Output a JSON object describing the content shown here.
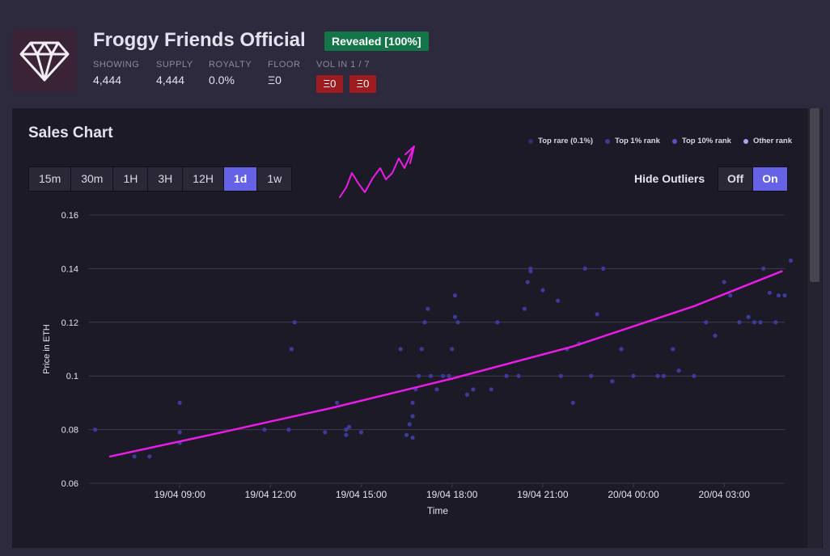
{
  "collection": {
    "name": "Froggy Friends Official",
    "status_badge": "Revealed [100%]",
    "logo_icon": "diamond-icon",
    "stats": [
      {
        "label": "SHOWING",
        "value": "4,444"
      },
      {
        "label": "SUPPLY",
        "value": "4,444"
      },
      {
        "label": "ROYALTY",
        "value": "0.0%"
      },
      {
        "label": "FLOOR",
        "value": "Ξ0"
      }
    ],
    "vol": {
      "label": "VOL IN 1 / 7",
      "day": "Ξ0",
      "week": "Ξ0"
    }
  },
  "panel": {
    "title": "Sales Chart",
    "timeframes": [
      "15m",
      "30m",
      "1H",
      "3H",
      "12H",
      "1d",
      "1w"
    ],
    "active_timeframe": "1d",
    "hide_outliers": {
      "label": "Hide Outliers",
      "off": "Off",
      "on": "On",
      "selected": "On"
    }
  },
  "colors": {
    "accent": "#6662e6",
    "badge": "#137548",
    "vol_chip": "#9e1c1f",
    "trend_line": "#e91ce6",
    "annotation": "#e91ce6"
  },
  "chart_data": {
    "type": "scatter",
    "xlabel": "Time",
    "ylabel": "Price in ETH",
    "x_ticks": [
      "19/04 09:00",
      "19/04 12:00",
      "19/04 15:00",
      "19/04 18:00",
      "19/04 21:00",
      "20/04 00:00",
      "20/04 03:00"
    ],
    "y_ticks": [
      "0.06",
      "0.08",
      "0.1",
      "0.12",
      "0.14",
      "0.16"
    ],
    "ylim": [
      0.06,
      0.16
    ],
    "xlim_hours": [
      6.0,
      29.0
    ],
    "grid": true,
    "legend": [
      {
        "name": "Top rare (0.1%)",
        "color": "#2e2b6e"
      },
      {
        "name": "Top 1% rank",
        "color": "#3e3a9a"
      },
      {
        "name": "Top 10% rank",
        "color": "#5652c6"
      },
      {
        "name": "Other rank",
        "color": "#a9a7f0"
      }
    ],
    "legend_position": "top-right",
    "series": [
      {
        "name": "Other rank",
        "points": [
          [
            6.2,
            0.08
          ],
          [
            7.5,
            0.07
          ],
          [
            8.0,
            0.07
          ],
          [
            9.0,
            0.09
          ],
          [
            9.0,
            0.079
          ],
          [
            9.0,
            0.075
          ],
          [
            11.8,
            0.08
          ],
          [
            12.6,
            0.08
          ],
          [
            12.7,
            0.11
          ],
          [
            12.8,
            0.12
          ],
          [
            13.8,
            0.079
          ],
          [
            14.2,
            0.09
          ],
          [
            14.5,
            0.08
          ],
          [
            14.5,
            0.078
          ],
          [
            14.6,
            0.081
          ],
          [
            15.0,
            0.079
          ],
          [
            16.3,
            0.11
          ],
          [
            16.5,
            0.078
          ],
          [
            16.6,
            0.082
          ],
          [
            16.7,
            0.085
          ],
          [
            16.7,
            0.077
          ],
          [
            16.7,
            0.09
          ],
          [
            16.8,
            0.095
          ],
          [
            16.9,
            0.1
          ],
          [
            17.0,
            0.11
          ],
          [
            17.1,
            0.12
          ],
          [
            17.2,
            0.125
          ],
          [
            17.3,
            0.1
          ],
          [
            17.5,
            0.095
          ],
          [
            17.7,
            0.1
          ],
          [
            17.9,
            0.1
          ],
          [
            18.0,
            0.11
          ],
          [
            18.1,
            0.122
          ],
          [
            18.1,
            0.13
          ],
          [
            18.2,
            0.12
          ],
          [
            18.5,
            0.093
          ],
          [
            18.7,
            0.095
          ],
          [
            19.3,
            0.095
          ],
          [
            19.5,
            0.12
          ],
          [
            19.8,
            0.1
          ],
          [
            20.2,
            0.1
          ],
          [
            20.4,
            0.125
          ],
          [
            20.5,
            0.135
          ],
          [
            20.6,
            0.14
          ],
          [
            20.6,
            0.139
          ],
          [
            21.0,
            0.132
          ],
          [
            21.5,
            0.128
          ],
          [
            21.6,
            0.1
          ],
          [
            21.8,
            0.11
          ],
          [
            22.0,
            0.09
          ],
          [
            22.2,
            0.112
          ],
          [
            22.4,
            0.14
          ],
          [
            22.6,
            0.1
          ],
          [
            22.8,
            0.123
          ],
          [
            23.0,
            0.14
          ],
          [
            23.3,
            0.098
          ],
          [
            23.6,
            0.11
          ],
          [
            24.0,
            0.1
          ],
          [
            24.8,
            0.1
          ],
          [
            25.0,
            0.1
          ],
          [
            25.3,
            0.11
          ],
          [
            25.5,
            0.102
          ],
          [
            26.0,
            0.1
          ],
          [
            26.4,
            0.12
          ],
          [
            26.7,
            0.115
          ],
          [
            27.0,
            0.135
          ],
          [
            27.2,
            0.13
          ],
          [
            27.5,
            0.12
          ],
          [
            27.8,
            0.122
          ],
          [
            28.0,
            0.12
          ],
          [
            28.2,
            0.12
          ],
          [
            28.3,
            0.14
          ],
          [
            28.5,
            0.131
          ],
          [
            28.7,
            0.12
          ],
          [
            28.8,
            0.13
          ],
          [
            29.0,
            0.13
          ],
          [
            29.2,
            0.143
          ]
        ]
      }
    ],
    "trend_line": {
      "points": [
        [
          6.7,
          0.07
        ],
        [
          10.0,
          0.078
        ],
        [
          14.0,
          0.088
        ],
        [
          18.0,
          0.099
        ],
        [
          22.0,
          0.111
        ],
        [
          26.0,
          0.126
        ],
        [
          28.9,
          0.139
        ]
      ]
    }
  }
}
